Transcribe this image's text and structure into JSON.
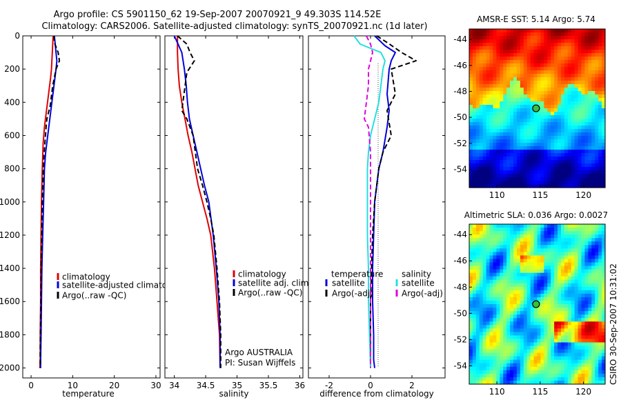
{
  "header": {
    "line1": "Argo profile: CS 5901150_62 19-Sep-2007 20070921_9 49.303S 114.52E",
    "line2": "Climatology: CARS2006. Satellite-adjusted climatology: synTS_20070921.nc (1d later)"
  },
  "credit": "CSIRO 30-Sep-2007 10:31:02",
  "colors": {
    "climatology": "#e00000",
    "satellite": "#0000dd",
    "argo": "#000000",
    "satellite_salinity": "#22e0e0",
    "argo_adj_salinity": "#e000e0",
    "zero_line": "#000000"
  },
  "chart_data": [
    {
      "type": "line",
      "xlabel": "temperature",
      "xlim": [
        -2,
        31
      ],
      "xticks": [
        0,
        10,
        20,
        30
      ],
      "ylim": [
        0,
        2060
      ],
      "yticks": [
        0,
        200,
        400,
        600,
        800,
        1000,
        1200,
        1400,
        1600,
        1800,
        2000
      ],
      "y_reversed": true,
      "legend": [
        "climatology",
        "satellite-adjusted climatology",
        "Argo(..raw -QC)"
      ],
      "series": [
        {
          "name": "climatology",
          "color": "#e00000",
          "style": "solid",
          "x": [
            5.3,
            5.2,
            5.1,
            5.0,
            4.9,
            4.7,
            4.2,
            3.7,
            3.2,
            2.9,
            2.7,
            2.5,
            2.4,
            2.3,
            2.3,
            2.2,
            2.2,
            2.1
          ],
          "y": [
            0,
            50,
            100,
            150,
            200,
            250,
            350,
            450,
            550,
            650,
            800,
            1000,
            1200,
            1400,
            1600,
            1800,
            1950,
            2000
          ]
        },
        {
          "name": "satellite-adjusted climatology",
          "color": "#0000dd",
          "style": "solid",
          "x": [
            5.6,
            5.8,
            6.0,
            6.2,
            6.0,
            5.5,
            5.0,
            4.5,
            4.0,
            3.5,
            3.2,
            3.0,
            2.8,
            2.6,
            2.5,
            2.4,
            2.3,
            2.3
          ],
          "y": [
            0,
            50,
            100,
            150,
            200,
            300,
            400,
            500,
            600,
            700,
            800,
            1000,
            1200,
            1400,
            1600,
            1800,
            1950,
            2000
          ]
        },
        {
          "name": "Argo(..raw -QC)",
          "color": "#000000",
          "style": "dashed",
          "x": [
            5.5,
            5.6,
            6.5,
            6.8,
            6.0,
            5.2,
            4.6,
            3.8,
            3.6,
            3.3,
            3.0,
            2.8,
            2.6,
            2.5,
            2.4,
            2.3,
            2.2,
            2.2
          ],
          "y": [
            0,
            40,
            100,
            150,
            200,
            300,
            420,
            500,
            550,
            650,
            750,
            900,
            1100,
            1300,
            1500,
            1700,
            1900,
            2000
          ]
        }
      ]
    },
    {
      "type": "line",
      "xlabel": "salinity",
      "xlim": [
        33.85,
        36.05
      ],
      "xticks": [
        34,
        34.5,
        35,
        35.5,
        36
      ],
      "ylim": [
        0,
        2060
      ],
      "y_reversed": true,
      "legend": [
        "climatology",
        "satellite adj. clim.",
        "Argo(..raw -QC)"
      ],
      "annotation": [
        "Argo AUSTRALIA",
        "PI: Susan Wijffels"
      ],
      "series": [
        {
          "name": "climatology",
          "color": "#e00000",
          "style": "solid",
          "x": [
            34.05,
            34.05,
            34.06,
            34.08,
            34.12,
            34.17,
            34.22,
            34.28,
            34.33,
            34.38,
            34.45,
            34.52,
            34.58,
            34.64,
            34.68,
            34.72,
            34.73
          ],
          "y": [
            0,
            100,
            200,
            300,
            400,
            500,
            600,
            700,
            800,
            900,
            1000,
            1100,
            1200,
            1400,
            1600,
            1800,
            2000
          ]
        },
        {
          "name": "satellite adj. clim.",
          "color": "#0000dd",
          "style": "solid",
          "x": [
            34.0,
            34.06,
            34.12,
            34.16,
            34.19,
            34.21,
            34.24,
            34.3,
            34.36,
            34.42,
            34.48,
            34.55,
            34.62,
            34.67,
            34.71,
            34.73,
            34.73
          ],
          "y": [
            0,
            50,
            100,
            200,
            300,
            400,
            500,
            600,
            700,
            800,
            900,
            1000,
            1200,
            1400,
            1600,
            1800,
            2000
          ]
        },
        {
          "name": "Argo(..raw -QC)",
          "color": "#000000",
          "style": "dashed",
          "x": [
            34.05,
            34.2,
            34.25,
            34.32,
            34.2,
            34.12,
            34.2,
            34.3,
            34.37,
            34.45,
            34.52,
            34.58,
            34.63,
            34.68,
            34.72,
            34.74,
            34.74
          ],
          "y": [
            0,
            50,
            100,
            150,
            220,
            450,
            500,
            600,
            800,
            900,
            1000,
            1100,
            1200,
            1400,
            1600,
            1800,
            2000
          ]
        }
      ]
    },
    {
      "type": "line",
      "xlabel": "difference from climatology",
      "xlim": [
        -3,
        3.6
      ],
      "xticks": [
        -2,
        0,
        2
      ],
      "ylim": [
        0,
        2060
      ],
      "y_reversed": true,
      "legend_left_title": "temperature",
      "legend_right_title": "salinity",
      "legend_left": [
        "satellite",
        "Argo(-adj)"
      ],
      "legend_right": [
        "satellite",
        "Argo(-adj)"
      ],
      "series": [
        {
          "name": "temperature satellite",
          "color": "#0000dd",
          "style": "solid",
          "x": [
            0.2,
            0.7,
            1.2,
            1.0,
            0.9,
            0.8,
            0.9,
            0.8,
            0.6,
            0.4,
            0.3,
            0.2,
            0.15,
            0.1,
            0.1,
            0.15,
            0.15,
            0.2
          ],
          "y": [
            0,
            60,
            100,
            150,
            200,
            350,
            450,
            550,
            700,
            800,
            900,
            1000,
            1200,
            1400,
            1600,
            1800,
            1950,
            2000
          ]
        },
        {
          "name": "temperature Argo(-adj)",
          "color": "#000000",
          "style": "dashed",
          "x": [
            0.3,
            0.8,
            1.5,
            2.2,
            1.0,
            1.2,
            0.8,
            1.0,
            0.6,
            0.4,
            0.3,
            0.2,
            0.1,
            0.05,
            0.0,
            0.0,
            0.0,
            0.0
          ],
          "y": [
            0,
            40,
            100,
            150,
            200,
            350,
            450,
            600,
            700,
            800,
            900,
            1000,
            1200,
            1400,
            1600,
            1800,
            1950,
            2000
          ]
        },
        {
          "name": "salinity satellite",
          "color": "#22e0e0",
          "style": "solid",
          "x": [
            -0.8,
            -0.5,
            0.5,
            0.7,
            0.6,
            0.5,
            0.4,
            0.2,
            0.0,
            -0.1,
            -0.15,
            -0.15,
            -0.15,
            -0.15,
            -0.1,
            -0.1,
            -0.05,
            0.0
          ],
          "y": [
            0,
            50,
            100,
            150,
            200,
            300,
            400,
            500,
            600,
            700,
            800,
            900,
            1000,
            1200,
            1400,
            1600,
            1800,
            2000
          ]
        },
        {
          "name": "salinity Argo(-adj)",
          "color": "#e000e0",
          "style": "dashed",
          "x": [
            -0.2,
            0.0,
            0.1,
            -0.1,
            -0.1,
            -0.2,
            -0.3,
            -0.1,
            0.0,
            0.0,
            0.0,
            0.0,
            0.0,
            0.0,
            0.0,
            0.0,
            0.0
          ],
          "y": [
            0,
            50,
            100,
            200,
            300,
            400,
            500,
            550,
            700,
            800,
            1000,
            1200,
            1400,
            1600,
            1800,
            1950,
            2000
          ]
        }
      ]
    },
    {
      "type": "heatmap",
      "title": "AMSR-E SST: 5.14  Argo: 5.74",
      "xticks": [
        110,
        115,
        120
      ],
      "yticks": [
        -44,
        -46,
        -48,
        -50,
        -52,
        -54
      ],
      "xlim": [
        106.8,
        122.5
      ],
      "ylim": [
        -55.4,
        -43.2
      ],
      "marker": {
        "lon": 114.52,
        "lat": -49.303
      },
      "colormap": "jet"
    },
    {
      "type": "heatmap",
      "title": "Altimetric SLA: 0.036  Argo: 0.0027",
      "xticks": [
        110,
        115,
        120
      ],
      "yticks": [
        -44,
        -46,
        -48,
        -50,
        -52,
        -54
      ],
      "xlim": [
        106.8,
        122.5
      ],
      "ylim": [
        -55.4,
        -43.2
      ],
      "marker": {
        "lon": 114.52,
        "lat": -49.303
      },
      "colormap": "jet"
    }
  ]
}
